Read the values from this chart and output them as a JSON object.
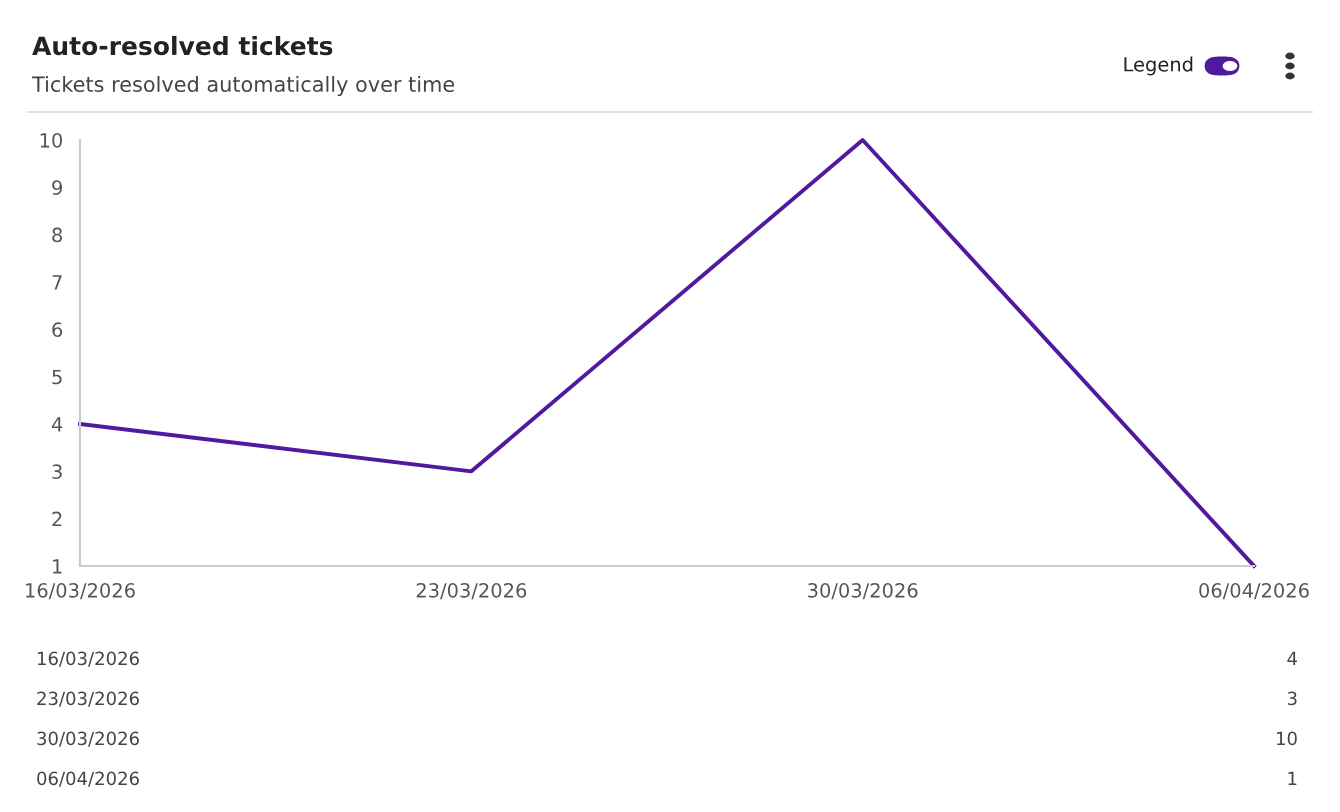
{
  "chart_data": {
    "type": "line",
    "title": "Auto-resolved tickets",
    "subtitle": "Tickets resolved automatically over time",
    "annotations": [
      "Legend",
      "16/03/2026",
      "4",
      "23/03/2026",
      "3",
      "30/03/2026",
      "10",
      "06/04/2026",
      "1"
    ],
    "categories": [
      "16/03/2026",
      "23/03/2026",
      "30/03/2026",
      "06/04/2026"
    ],
    "series": [
      {
        "color": "#4f1aa0",
        "values": [
          4,
          3,
          10,
          1
        ]
      }
    ],
    "ylim": [
      1,
      10
    ],
    "yticks": [
      1,
      2,
      3,
      4,
      5,
      6,
      7,
      8,
      9,
      10
    ],
    "grid": false,
    "legend": false,
    "marker": "none",
    "line_style": "solid"
  }
}
